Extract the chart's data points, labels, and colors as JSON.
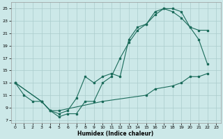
{
  "xlabel": "Humidex (Indice chaleur)",
  "bg_color": "#cce8e8",
  "grid_color": "#aacccc",
  "line_color": "#1a6b5a",
  "xlim": [
    -0.5,
    23.5
  ],
  "ylim": [
    6.5,
    26.0
  ],
  "xticks": [
    0,
    1,
    2,
    3,
    4,
    5,
    6,
    7,
    8,
    9,
    10,
    11,
    12,
    13,
    14,
    15,
    16,
    17,
    18,
    19,
    20,
    21,
    22,
    23
  ],
  "yticks": [
    7,
    9,
    11,
    13,
    15,
    17,
    19,
    21,
    23,
    25
  ],
  "line1_x": [
    0,
    1,
    2,
    3,
    4,
    5,
    6,
    7,
    8,
    9,
    10,
    11,
    12,
    13,
    14,
    15,
    16,
    17,
    18,
    19,
    20,
    21,
    22
  ],
  "line1_y": [
    13,
    11,
    10,
    10,
    8.5,
    7.5,
    8,
    8,
    10,
    10,
    13,
    14,
    17,
    19.5,
    21.5,
    22.5,
    24,
    25,
    25,
    24.5,
    22,
    21.5,
    21.5
  ],
  "line2_x": [
    0,
    3,
    4,
    5,
    6,
    7,
    8,
    9,
    10,
    11,
    12,
    13,
    14,
    15,
    16,
    17,
    18,
    19,
    20,
    21,
    22
  ],
  "line2_y": [
    13,
    10,
    8.5,
    8,
    8.5,
    10.5,
    14,
    13,
    14,
    14.5,
    14,
    20,
    22,
    22.5,
    24.5,
    25,
    24.5,
    23.5,
    22,
    20,
    16
  ],
  "line3_x": [
    0,
    3,
    4,
    5,
    10,
    15,
    16,
    18,
    19,
    20,
    21,
    22
  ],
  "line3_y": [
    13,
    10,
    8.5,
    8.5,
    10,
    11,
    12,
    12.5,
    13,
    14,
    14,
    14.5
  ]
}
